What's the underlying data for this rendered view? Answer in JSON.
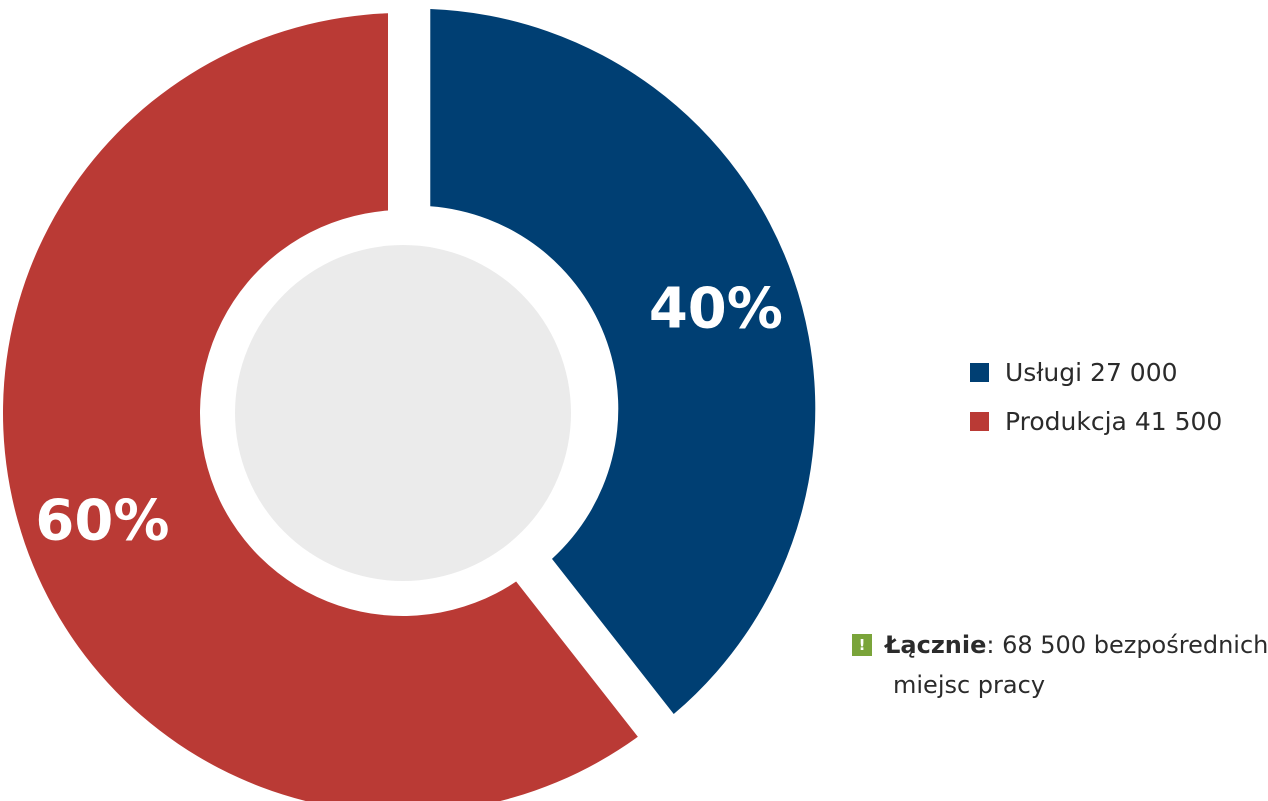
{
  "chart_data": {
    "type": "pie",
    "slices": [
      {
        "label": "Usługi",
        "value": 27000,
        "display": "27 000",
        "percent_label": "40%",
        "color": "#003f73"
      },
      {
        "label": "Produkcja",
        "value": 41500,
        "display": "41 500",
        "percent_label": "60%",
        "color": "#ba3a35"
      }
    ],
    "center_color": "#ebebeb",
    "legend_placement": "right"
  },
  "note": {
    "icon": "exclamation-icon",
    "icon_glyph": "!",
    "bold": "Łącznie",
    "separator": ":",
    "text_line1": " 68 500 bezpośrednich",
    "text_line2": "miejsc pracy",
    "icon_color": "#7aa43a"
  }
}
